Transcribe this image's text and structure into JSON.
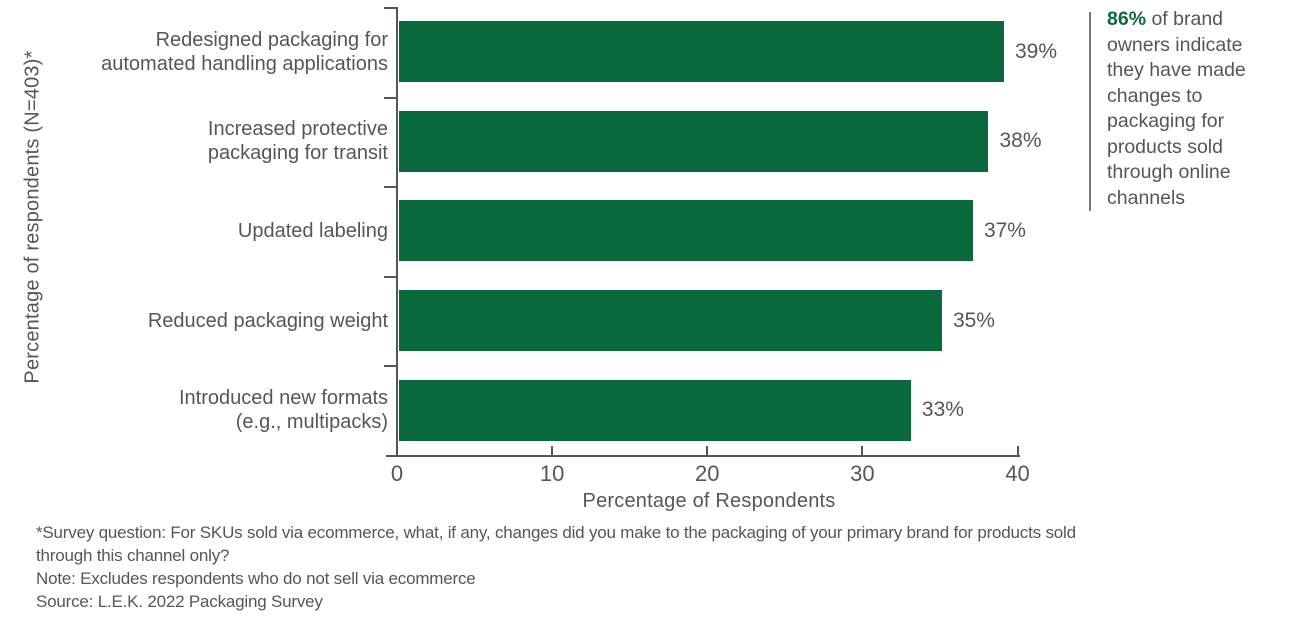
{
  "chart_data": {
    "type": "bar",
    "orientation": "horizontal",
    "title": "",
    "categories": [
      "Redesigned packaging for\nautomated handling applications",
      "Increased protective\npackaging for transit",
      "Updated labeling",
      "Reduced packaging weight",
      "Introduced new formats\n(e.g., multipacks)"
    ],
    "values": [
      39,
      38,
      37,
      35,
      33
    ],
    "value_labels": [
      "39%",
      "38%",
      "37%",
      "35%",
      "33%"
    ],
    "xlabel": "Percentage of Respondents",
    "ylabel": "Percentage of respondents (N=403)*",
    "xlim": [
      0,
      40
    ],
    "x_ticks": [
      0,
      10,
      20,
      30,
      40
    ],
    "grid": false,
    "legend": "none",
    "bar_color": "#0b6a3d"
  },
  "callout": {
    "highlight": "86%",
    "text": " of brand owners indicate they have made changes to packaging for products sold through online channels",
    "highlight_color": "#0b6a3d"
  },
  "footnotes": [
    "*Survey question: For SKUs sold via ecommerce, what, if any, changes did you make to the packaging of your primary brand for products sold through this channel only?",
    "Note: Excludes respondents who do not sell via ecommerce",
    "Source: L.E.K. 2022 Packaging Survey"
  ],
  "colors": {
    "bar": "#0b6a3d",
    "text": "#55565a",
    "axis": "#55565a",
    "divider": "#76777a"
  }
}
